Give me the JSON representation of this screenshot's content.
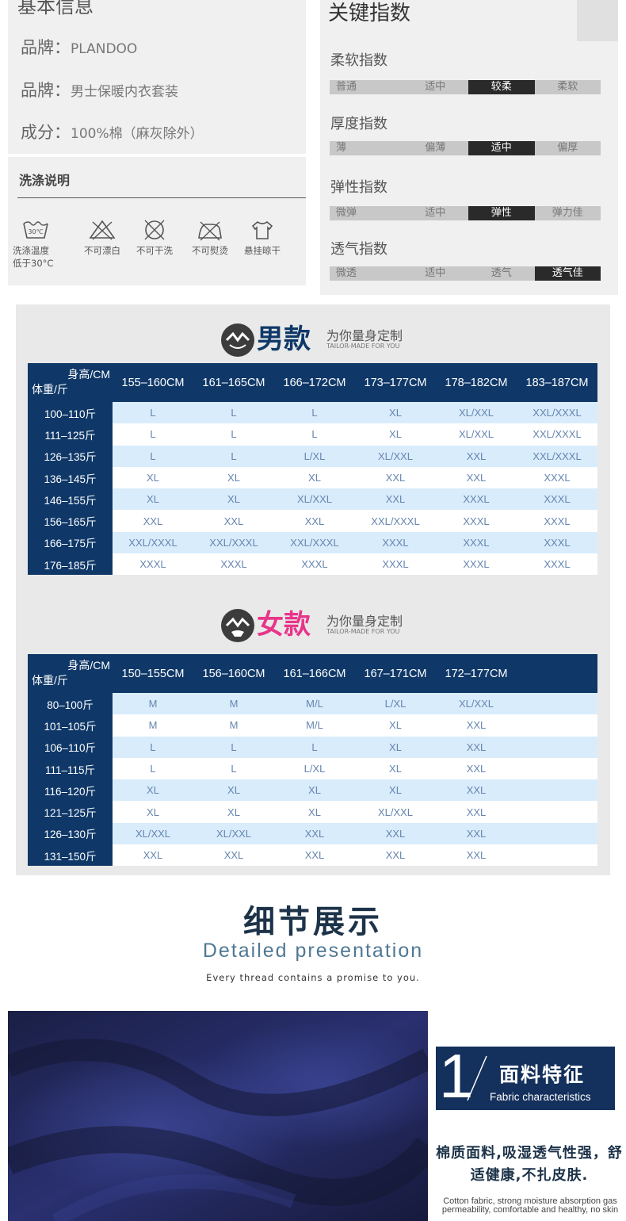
{
  "basic": {
    "title": "基本信息",
    "rows": [
      {
        "label": "品牌：",
        "value": "PLANDOO"
      },
      {
        "label": "品牌：",
        "value": "男士保暖内衣套装"
      },
      {
        "label": "成分：",
        "value": "100%棉（麻灰除外）"
      }
    ]
  },
  "wash": {
    "title": "洗涤说明",
    "icon_temp_text": "30℃",
    "items": [
      {
        "icon": "wash-30-icon",
        "label": "洗涤温度\n低于30°C"
      },
      {
        "icon": "no-bleach-icon",
        "label": "不可漂白"
      },
      {
        "icon": "no-dry-clean-icon",
        "label": "不可干洗"
      },
      {
        "icon": "no-iron-icon",
        "label": "不可熨烫"
      },
      {
        "icon": "hang-dry-icon",
        "label": "悬挂晾干"
      }
    ]
  },
  "index": {
    "title": "关键指数",
    "groups": [
      {
        "label": "柔软指数",
        "options": [
          "普通",
          "适中",
          "较柔",
          "柔软"
        ],
        "selected": 2
      },
      {
        "label": "厚度指数",
        "options": [
          "薄",
          "偏薄",
          "适中",
          "偏厚"
        ],
        "selected": 2
      },
      {
        "label": "弹性指数",
        "options": [
          "微弹",
          "适中",
          "弹性",
          "弹力佳"
        ],
        "selected": 2
      },
      {
        "label": "透气指数",
        "options": [
          "微透",
          "适中",
          "透气",
          "透气佳"
        ],
        "selected": 3
      }
    ]
  },
  "men": {
    "title": "男款",
    "title_color": "#0f3868",
    "sub_cn": "为你量身定制",
    "sub_en": "TAILOR-MADE FOR YOU",
    "corner_top": "身高/CM",
    "corner_bottom": "体重/斤",
    "heights": [
      "155–160CM",
      "161–165CM",
      "166–172CM",
      "173–177CM",
      "178–182CM",
      "183–187CM"
    ],
    "rows": [
      {
        "weight": "100–110斤",
        "sizes": [
          "L",
          "L",
          "L",
          "XL",
          "XL/XXL",
          "XXL/XXXL"
        ]
      },
      {
        "weight": "111–125斤",
        "sizes": [
          "L",
          "L",
          "L",
          "XL",
          "XL/XXL",
          "XXL/XXXL"
        ]
      },
      {
        "weight": "126–135斤",
        "sizes": [
          "L",
          "L",
          "L/XL",
          "XL/XXL",
          "XXL",
          "XXL/XXXL"
        ]
      },
      {
        "weight": "136–145斤",
        "sizes": [
          "XL",
          "XL",
          "XL",
          "XXL",
          "XXL",
          "XXXL"
        ]
      },
      {
        "weight": "146–155斤",
        "sizes": [
          "XL",
          "XL",
          "XL/XXL",
          "XXL",
          "XXXL",
          "XXXL"
        ]
      },
      {
        "weight": "156–165斤",
        "sizes": [
          "XXL",
          "XXL",
          "XXL",
          "XXL/XXXL",
          "XXXL",
          "XXXL"
        ]
      },
      {
        "weight": "166–175斤",
        "sizes": [
          "XXL/XXXL",
          "XXL/XXXL",
          "XXL/XXXL",
          "XXXL",
          "XXXL",
          "XXXL"
        ]
      },
      {
        "weight": "176–185斤",
        "sizes": [
          "XXXL",
          "XXXL",
          "XXXL",
          "XXXL",
          "XXXL",
          "XXXL"
        ]
      }
    ]
  },
  "women": {
    "title": "女款",
    "title_color": "#e8358a",
    "sub_cn": "为你量身定制",
    "sub_en": "TAILOR-MADE FOR YOU",
    "corner_top": "身高/CM",
    "corner_bottom": "体重/斤",
    "heights": [
      "150–155CM",
      "156–160CM",
      "161–166CM",
      "167–171CM",
      "172–177CM",
      ""
    ],
    "rows": [
      {
        "weight": "80–100斤",
        "sizes": [
          "M",
          "M",
          "M/L",
          "L/XL",
          "XL/XXL",
          ""
        ]
      },
      {
        "weight": "101–105斤",
        "sizes": [
          "M",
          "M",
          "M/L",
          "XL",
          "XXL",
          ""
        ]
      },
      {
        "weight": "106–110斤",
        "sizes": [
          "L",
          "L",
          "L",
          "XL",
          "XXL",
          ""
        ]
      },
      {
        "weight": "111–115斤",
        "sizes": [
          "L",
          "L",
          "L/XL",
          "XL",
          "XXL",
          ""
        ]
      },
      {
        "weight": "116–120斤",
        "sizes": [
          "XL",
          "XL",
          "XL",
          "XL",
          "XXL",
          ""
        ]
      },
      {
        "weight": "121–125斤",
        "sizes": [
          "XL",
          "XL",
          "XL",
          "XL/XXL",
          "XXL",
          ""
        ]
      },
      {
        "weight": "126–130斤",
        "sizes": [
          "XL/XXL",
          "XL/XXL",
          "XXL",
          "XXL",
          "XXL",
          ""
        ]
      },
      {
        "weight": "131–150斤",
        "sizes": [
          "XXL",
          "XXL",
          "XXL",
          "XXL",
          "XXL",
          ""
        ]
      }
    ]
  },
  "detail": {
    "title_cn": "细节展示",
    "title_en": "Detailed presentation",
    "subtitle": "Every thread contains a promise to you."
  },
  "feature": {
    "number": "1",
    "title_cn": "面料特征",
    "title_en": "Fabric characteristics",
    "desc_cn": "棉质面料,吸湿透气性强，舒适健康,不扎皮肤.",
    "desc_en": "Cotton fabric, strong moisture absorption gas permeability, comfortable and healthy, no skin"
  }
}
